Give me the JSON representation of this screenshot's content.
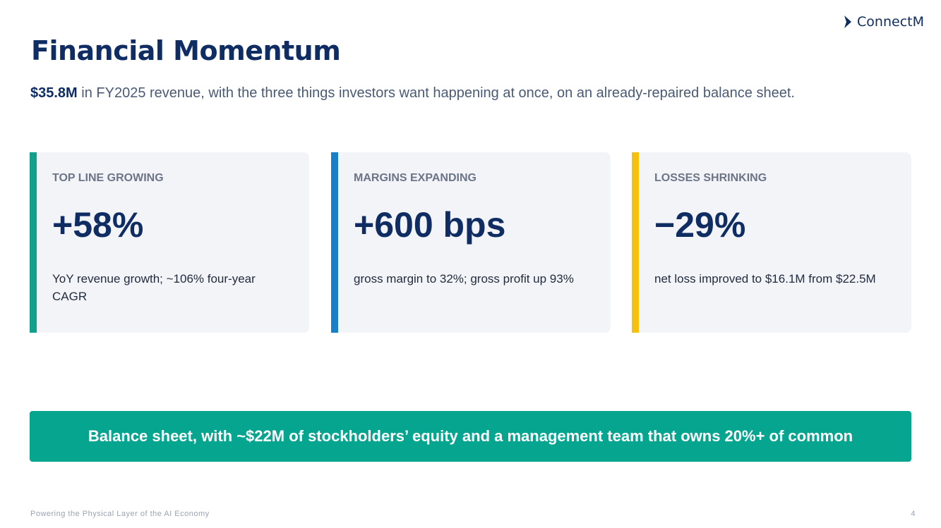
{
  "header": {
    "logo": "ConnectM",
    "title": "Financial Momentum",
    "subtitle_bold": "$35.8M",
    "subtitle_rest": " in FY2025 revenue, with the three things investors want happening at once, on an already-repaired balance sheet."
  },
  "cards": [
    {
      "label": "TOP LINE GROWING",
      "value": "+58%",
      "note": "YoY revenue growth; ~106% four-year CAGR",
      "color": "#12a08c"
    },
    {
      "label": "MARGINS EXPANDING",
      "value": "+600 bps",
      "note": "gross margin to 32%; gross profit up 93%",
      "color": "#1a7fc8"
    },
    {
      "label": "LOSSES SHRINKING",
      "value": "−29%",
      "note": "net loss improved to $16.1M from $22.5M",
      "color": "#f5c10e"
    }
  ],
  "banner": "Balance sheet, with ~$22M of stockholders’ equity and a management team that owns 20%+ of common",
  "footer": {
    "tagline": "Powering the Physical Layer of the AI Economy",
    "page": "4"
  }
}
